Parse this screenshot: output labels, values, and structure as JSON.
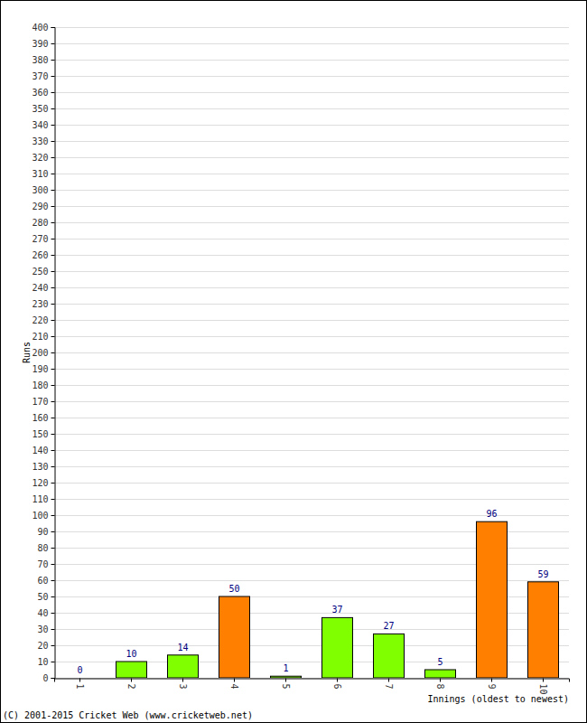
{
  "chart_data": {
    "type": "bar",
    "categories": [
      "1",
      "2",
      "3",
      "4",
      "5",
      "6",
      "7",
      "8",
      "9",
      "10"
    ],
    "values": [
      0,
      10,
      14,
      50,
      1,
      37,
      27,
      5,
      96,
      59
    ],
    "colors": [
      "#80ff00",
      "#80ff00",
      "#80ff00",
      "#ff8000",
      "#80ff00",
      "#80ff00",
      "#80ff00",
      "#80ff00",
      "#ff8000",
      "#ff8000"
    ],
    "ylim": [
      0,
      400
    ],
    "yticks": [
      0,
      10,
      20,
      30,
      40,
      50,
      60,
      70,
      80,
      90,
      100,
      110,
      120,
      130,
      140,
      150,
      160,
      170,
      180,
      190,
      200,
      210,
      220,
      230,
      240,
      250,
      260,
      270,
      280,
      290,
      300,
      310,
      320,
      330,
      340,
      350,
      360,
      370,
      380,
      390,
      400
    ],
    "grid": true,
    "data_labels": true,
    "x_label": "Innings (oldest to newest)",
    "y_label": "Runs",
    "annotations": [
      "(C) 2001-2015 Cricket Web (www.cricketweb.net)"
    ]
  }
}
